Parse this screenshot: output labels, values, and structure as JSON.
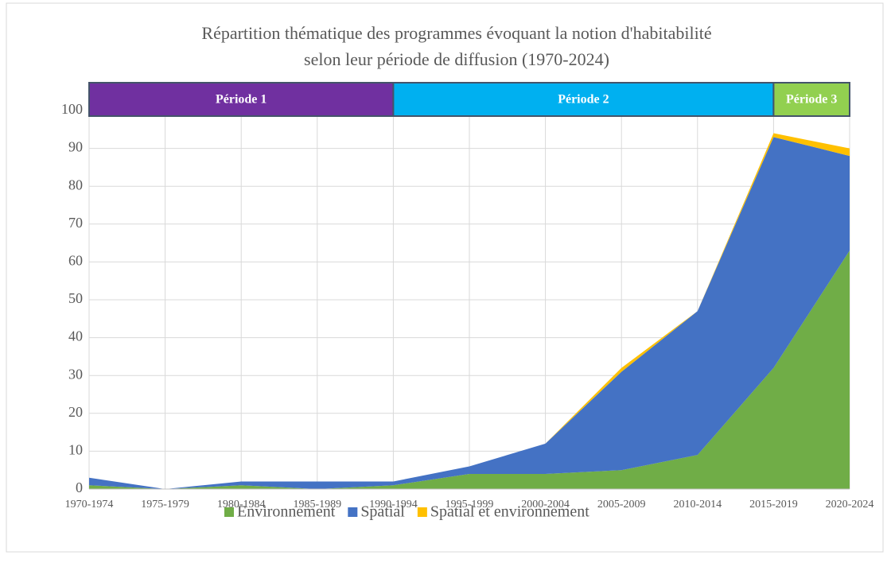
{
  "chart_data": {
    "type": "stacked_area",
    "title": [
      "Répartition thématique des programmes évoquant la notion d'habitabilité",
      "selon leur période de diffusion (1970-2024)"
    ],
    "categories": [
      "1970-1974",
      "1975-1979",
      "1980-1984",
      "1985-1989",
      "1990-1994",
      "1995-1999",
      "2000-2004",
      "2005-2009",
      "2010-2014",
      "2015-2019",
      "2020-2024"
    ],
    "series": [
      {
        "name": "Environnement",
        "color": "#70ad47",
        "values": [
          1,
          0,
          1,
          0,
          1,
          4,
          4,
          5,
          9,
          32,
          63
        ]
      },
      {
        "name": "Spatial",
        "color": "#4472c4",
        "values": [
          2,
          0,
          1,
          2,
          1,
          2,
          8,
          26,
          38,
          61,
          25
        ]
      },
      {
        "name": "Spatial et environnement",
        "color": "#ffc000",
        "values": [
          0,
          0,
          0,
          0,
          0,
          0,
          0,
          1,
          0,
          1,
          2
        ]
      }
    ],
    "periods": [
      {
        "label": "Période 1",
        "start": "1970-1974",
        "end": "1990-1994",
        "color": "#7030a0"
      },
      {
        "label": "Période 2",
        "start": "1990-1994",
        "end": "2015-2019",
        "color": "#00b0f0"
      },
      {
        "label": "Période 3",
        "start": "2015-2019",
        "end": "2020-2024",
        "color": "#92d050"
      }
    ],
    "ylim": [
      0,
      100
    ],
    "yticks": [
      0,
      10,
      20,
      30,
      40,
      50,
      60,
      70,
      80,
      90,
      100
    ],
    "grid": true,
    "legend": "bottom"
  }
}
